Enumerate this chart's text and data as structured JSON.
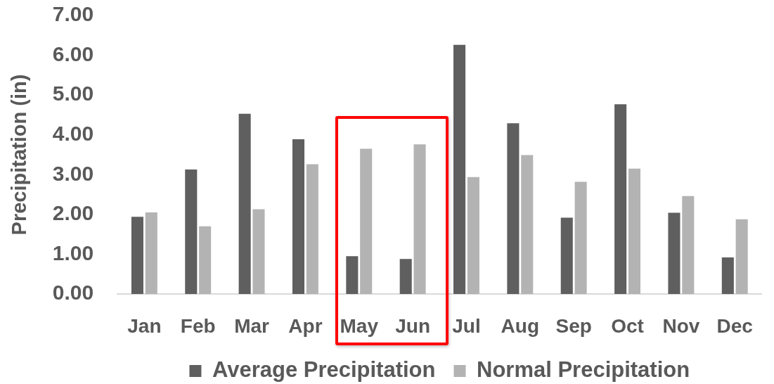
{
  "chart_data": {
    "type": "bar",
    "categories": [
      "Jan",
      "Feb",
      "Mar",
      "Apr",
      "May",
      "Jun",
      "Jul",
      "Aug",
      "Sep",
      "Oct",
      "Nov",
      "Dec"
    ],
    "series": [
      {
        "name": "Average Precipitation",
        "color": "#5f5f5f",
        "values": [
          1.94,
          3.13,
          4.53,
          3.89,
          0.95,
          0.88,
          6.26,
          4.29,
          1.92,
          4.77,
          2.04,
          0.92
        ]
      },
      {
        "name": "Normal Precipitation",
        "color": "#b3b3b3",
        "values": [
          2.05,
          1.7,
          2.13,
          3.26,
          3.65,
          3.76,
          2.94,
          3.49,
          2.82,
          3.15,
          2.46,
          1.88
        ]
      }
    ],
    "ylabel": "Precipitation (in)",
    "ylim": [
      0,
      7
    ],
    "yticks": [
      {
        "value": 0,
        "label": "0.00"
      },
      {
        "value": 1,
        "label": "1.00"
      },
      {
        "value": 2,
        "label": "2.00"
      },
      {
        "value": 3,
        "label": "3.00"
      },
      {
        "value": 4,
        "label": "4.00"
      },
      {
        "value": 5,
        "label": "5.00"
      },
      {
        "value": 6,
        "label": "6.00"
      },
      {
        "value": 7,
        "label": "7.00"
      }
    ],
    "legend": "bottom"
  }
}
